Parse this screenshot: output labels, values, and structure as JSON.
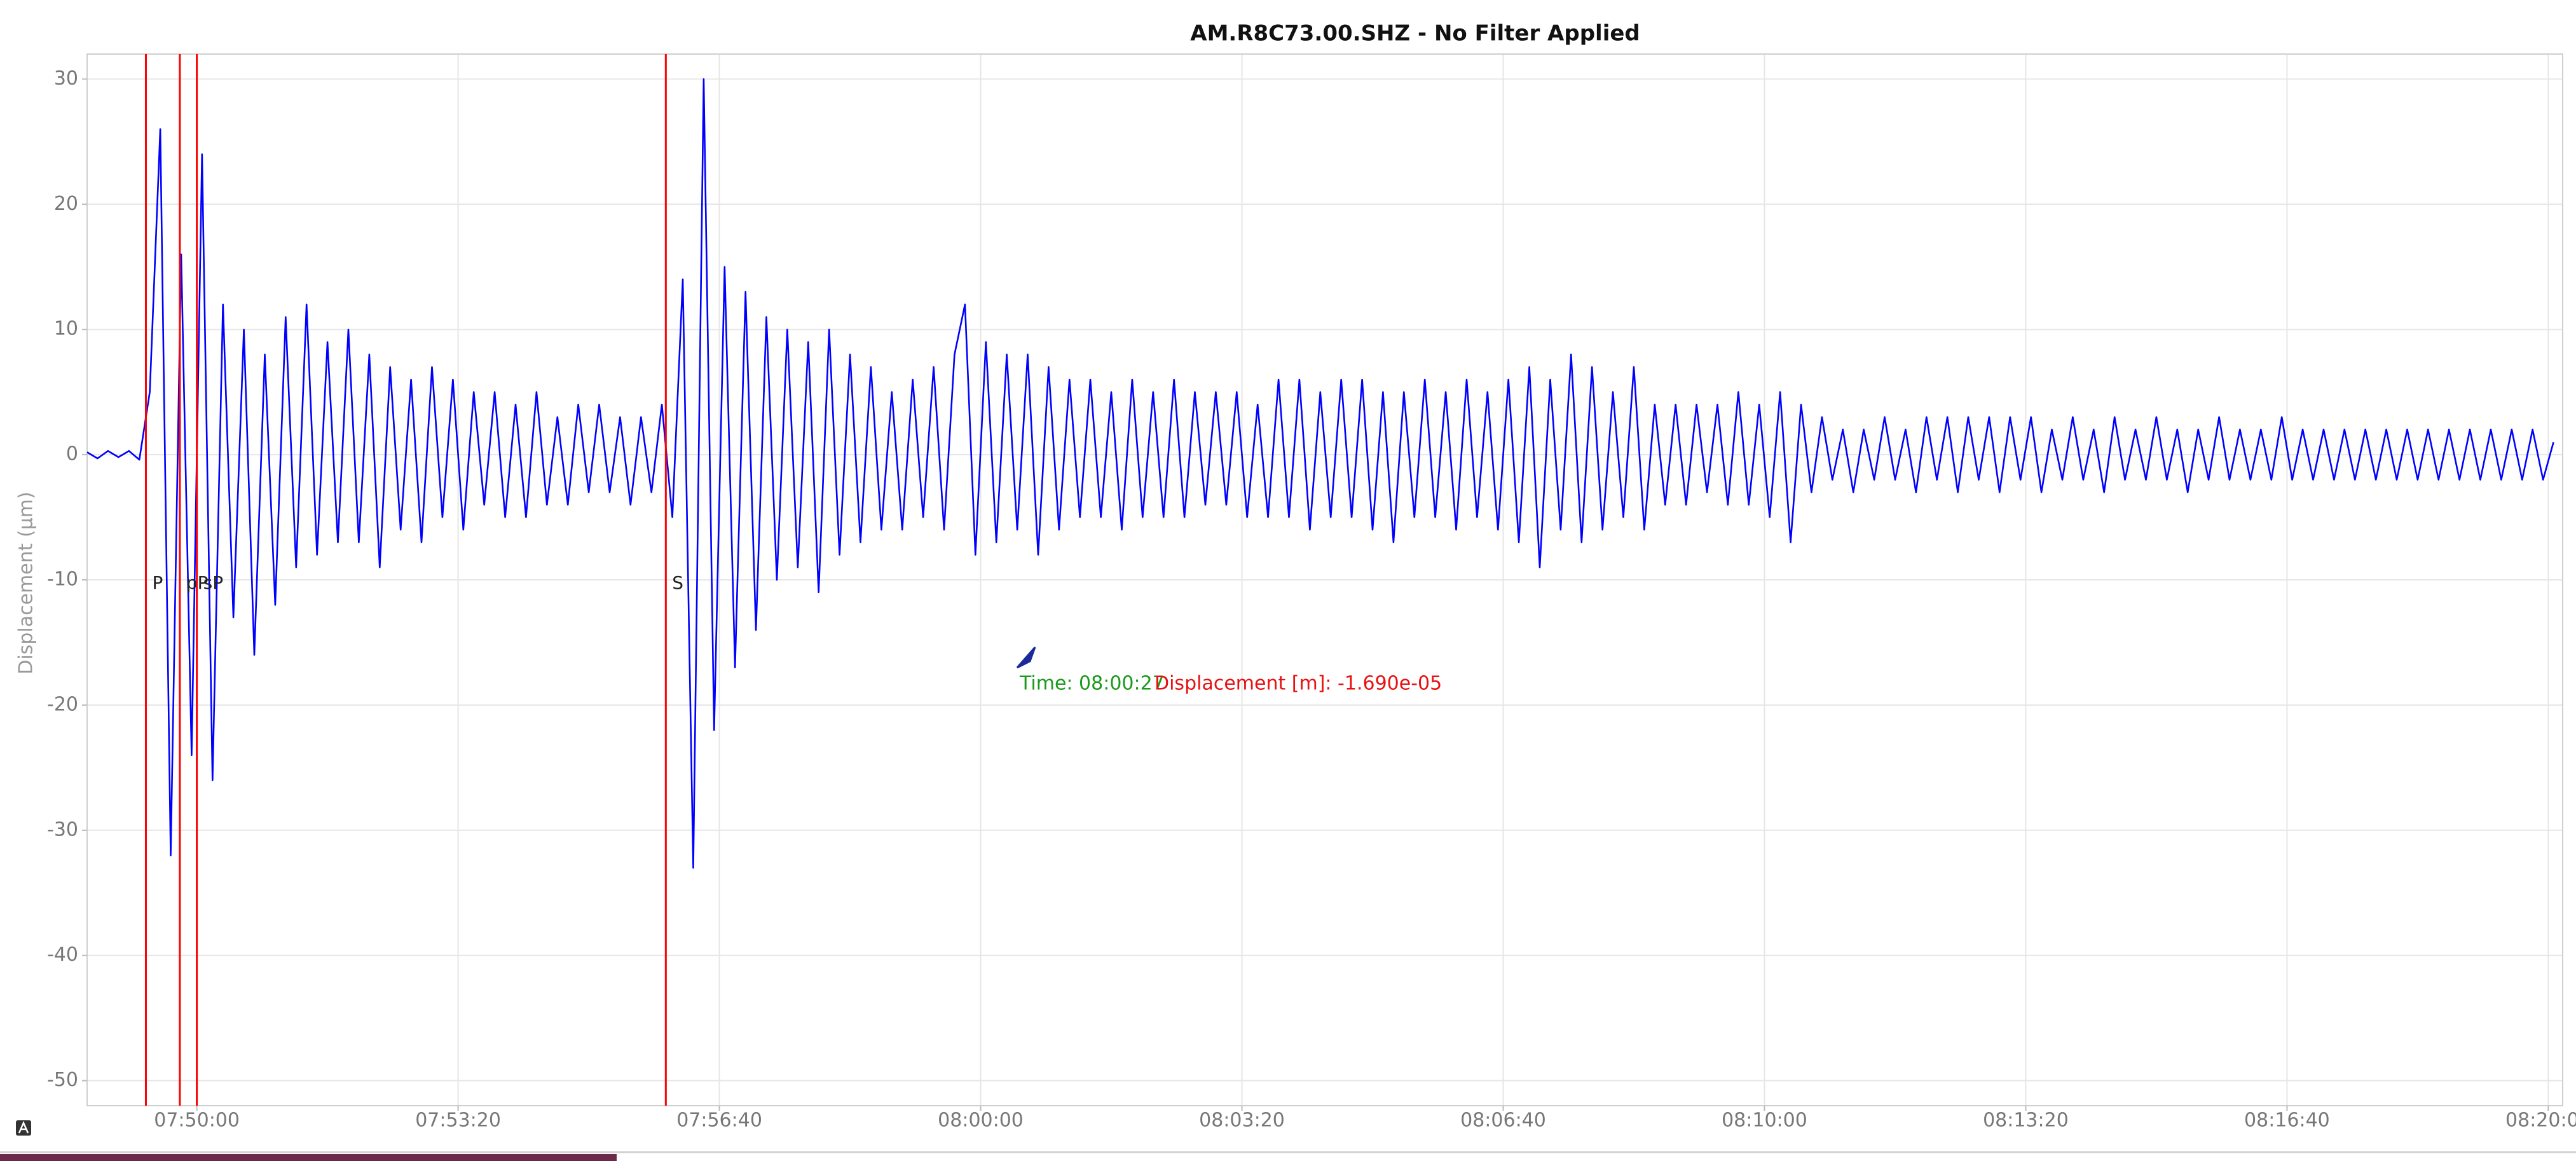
{
  "chart_data": {
    "type": "line",
    "title": "AM.R8C73.00.SHZ - No Filter Applied",
    "y_label": "Displacement (μm)",
    "color": "#0000ff",
    "grid": true,
    "xlim": [
      "07:48:36",
      "08:20:11"
    ],
    "xticks": [
      "07:50:00",
      "07:53:20",
      "07:56:40",
      "08:00:00",
      "08:03:20",
      "08:06:40",
      "08:10:00",
      "08:13:20",
      "08:16:40",
      "08:20:00"
    ],
    "ylim": [
      -52,
      32
    ],
    "yticks": [
      -50,
      -40,
      -30,
      -20,
      -10,
      0,
      10,
      20,
      30
    ],
    "phases": [
      {
        "name": "P",
        "time": "07:49:21"
      },
      {
        "name": "pP",
        "time": "07:49:47"
      },
      {
        "name": "sP",
        "time": "07:50:00"
      },
      {
        "name": "S",
        "time": "07:55:59"
      }
    ],
    "phase_color": "#ff0000",
    "cursor": {
      "time": "Time: 08:00:27",
      "displacement": "Displacement [m]: -1.690e-05"
    },
    "x": [
      "07:48:36",
      "07:48:44",
      "07:48:52",
      "07:49:00",
      "07:49:08",
      "07:49:16",
      "07:49:24",
      "07:49:32",
      "07:49:40",
      "07:49:48",
      "07:49:56",
      "07:50:04",
      "07:50:12",
      "07:50:20",
      "07:50:28",
      "07:50:36",
      "07:50:44",
      "07:50:52",
      "07:51:00",
      "07:51:08",
      "07:51:16",
      "07:51:24",
      "07:51:32",
      "07:51:40",
      "07:51:48",
      "07:51:56",
      "07:52:04",
      "07:52:12",
      "07:52:20",
      "07:52:28",
      "07:52:36",
      "07:52:44",
      "07:52:52",
      "07:53:00",
      "07:53:08",
      "07:53:16",
      "07:53:24",
      "07:53:32",
      "07:53:40",
      "07:53:48",
      "07:53:56",
      "07:54:04",
      "07:54:12",
      "07:54:20",
      "07:54:28",
      "07:54:36",
      "07:54:44",
      "07:54:52",
      "07:55:00",
      "07:55:08",
      "07:55:16",
      "07:55:24",
      "07:55:32",
      "07:55:40",
      "07:55:48",
      "07:55:56",
      "07:56:04",
      "07:56:12",
      "07:56:20",
      "07:56:28",
      "07:56:36",
      "07:56:44",
      "07:56:52",
      "07:57:00",
      "07:57:08",
      "07:57:16",
      "07:57:24",
      "07:57:32",
      "07:57:40",
      "07:57:48",
      "07:57:56",
      "07:58:04",
      "07:58:12",
      "07:58:20",
      "07:58:28",
      "07:58:36",
      "07:58:44",
      "07:58:52",
      "07:59:00",
      "07:59:08",
      "07:59:16",
      "07:59:24",
      "07:59:32",
      "07:59:40",
      "07:59:48",
      "07:59:56",
      "08:00:04",
      "08:00:12",
      "08:00:20",
      "08:00:28",
      "08:00:36",
      "08:00:44",
      "08:00:52",
      "08:01:00",
      "08:01:08",
      "08:01:16",
      "08:01:24",
      "08:01:32",
      "08:01:40",
      "08:01:48",
      "08:01:56",
      "08:02:04",
      "08:02:12",
      "08:02:20",
      "08:02:28",
      "08:02:36",
      "08:02:44",
      "08:02:52",
      "08:03:00",
      "08:03:08",
      "08:03:16",
      "08:03:24",
      "08:03:32",
      "08:03:40",
      "08:03:48",
      "08:03:56",
      "08:04:04",
      "08:04:12",
      "08:04:20",
      "08:04:28",
      "08:04:36",
      "08:04:44",
      "08:04:52",
      "08:05:00",
      "08:05:08",
      "08:05:16",
      "08:05:24",
      "08:05:32",
      "08:05:40",
      "08:05:48",
      "08:05:56",
      "08:06:04",
      "08:06:12",
      "08:06:20",
      "08:06:28",
      "08:06:36",
      "08:06:44",
      "08:06:52",
      "08:07:00",
      "08:07:08",
      "08:07:16",
      "08:07:24",
      "08:07:32",
      "08:07:40",
      "08:07:48",
      "08:07:56",
      "08:08:04",
      "08:08:12",
      "08:08:20",
      "08:08:28",
      "08:08:36",
      "08:08:44",
      "08:08:52",
      "08:09:00",
      "08:09:08",
      "08:09:16",
      "08:09:24",
      "08:09:32",
      "08:09:40",
      "08:09:48",
      "08:09:56",
      "08:10:04",
      "08:10:12",
      "08:10:20",
      "08:10:28",
      "08:10:36",
      "08:10:44",
      "08:10:52",
      "08:11:00",
      "08:11:08",
      "08:11:16",
      "08:11:24",
      "08:11:32",
      "08:11:40",
      "08:11:48",
      "08:11:56",
      "08:12:04",
      "08:12:12",
      "08:12:20",
      "08:12:28",
      "08:12:36",
      "08:12:44",
      "08:12:52",
      "08:13:00",
      "08:13:08",
      "08:13:16",
      "08:13:24",
      "08:13:32",
      "08:13:40",
      "08:13:48",
      "08:13:56",
      "08:14:04",
      "08:14:12",
      "08:14:20",
      "08:14:28",
      "08:14:36",
      "08:14:44",
      "08:14:52",
      "08:15:00",
      "08:15:08",
      "08:15:16",
      "08:15:24",
      "08:15:32",
      "08:15:40",
      "08:15:48",
      "08:15:56",
      "08:16:04",
      "08:16:12",
      "08:16:20",
      "08:16:28",
      "08:16:36",
      "08:16:44",
      "08:16:52",
      "08:17:00",
      "08:17:08",
      "08:17:16",
      "08:17:24",
      "08:17:32",
      "08:17:40",
      "08:17:48",
      "08:17:56",
      "08:18:04",
      "08:18:12",
      "08:18:20",
      "08:18:28",
      "08:18:36",
      "08:18:44",
      "08:18:52",
      "08:19:00",
      "08:19:08",
      "08:19:16",
      "08:19:24",
      "08:19:32",
      "08:19:40",
      "08:19:48",
      "08:19:56",
      "08:20:04"
    ],
    "values": [
      0.2,
      -0.3,
      0.3,
      -0.2,
      0.3,
      -0.4,
      5,
      26,
      -32,
      16,
      -24,
      24,
      -26,
      12,
      -13,
      10,
      -16,
      8,
      -12,
      11,
      -9,
      12,
      -8,
      9,
      -7,
      10,
      -7,
      8,
      -9,
      7,
      -6,
      6,
      -7,
      7,
      -5,
      6,
      -6,
      5,
      -4,
      5,
      -5,
      4,
      -5,
      5,
      -4,
      3,
      -4,
      4,
      -3,
      4,
      -3,
      3,
      -4,
      3,
      -3,
      4,
      -5,
      14,
      -33,
      30,
      -22,
      15,
      -17,
      13,
      -14,
      11,
      -10,
      10,
      -9,
      9,
      -11,
      10,
      -8,
      8,
      -7,
      7,
      -6,
      5,
      -6,
      6,
      -5,
      7,
      -6,
      8,
      12,
      -8,
      9,
      -7,
      8,
      -6,
      8,
      -8,
      7,
      -6,
      6,
      -5,
      6,
      -5,
      5,
      -6,
      6,
      -5,
      5,
      -5,
      6,
      -5,
      5,
      -4,
      5,
      -4,
      5,
      -5,
      4,
      -5,
      6,
      -5,
      6,
      -6,
      5,
      -5,
      6,
      -5,
      6,
      -6,
      5,
      -7,
      5,
      -5,
      6,
      -5,
      5,
      -6,
      6,
      -5,
      5,
      -6,
      6,
      -7,
      7,
      -9,
      6,
      -6,
      8,
      -7,
      7,
      -6,
      5,
      -5,
      7,
      -6,
      4,
      -4,
      4,
      -4,
      4,
      -3,
      4,
      -4,
      5,
      -4,
      4,
      -5,
      5,
      -7,
      4,
      -3,
      3,
      -2,
      2,
      -3,
      2,
      -2,
      3,
      -2,
      2,
      -3,
      3,
      -2,
      3,
      -3,
      3,
      -2,
      3,
      -3,
      3,
      -2,
      3,
      -3,
      2,
      -2,
      3,
      -2,
      2,
      -3,
      3,
      -2,
      2,
      -2,
      3,
      -2,
      2,
      -3,
      2,
      -2,
      3,
      -2,
      2,
      -2,
      2,
      -2,
      3,
      -2,
      2,
      -2,
      2,
      -2,
      2,
      -2,
      2,
      -2,
      2,
      -2,
      2,
      -2,
      2,
      -2,
      2,
      -2,
      2,
      -2,
      2,
      -2,
      2,
      -2,
      2,
      -2,
      1
    ]
  }
}
